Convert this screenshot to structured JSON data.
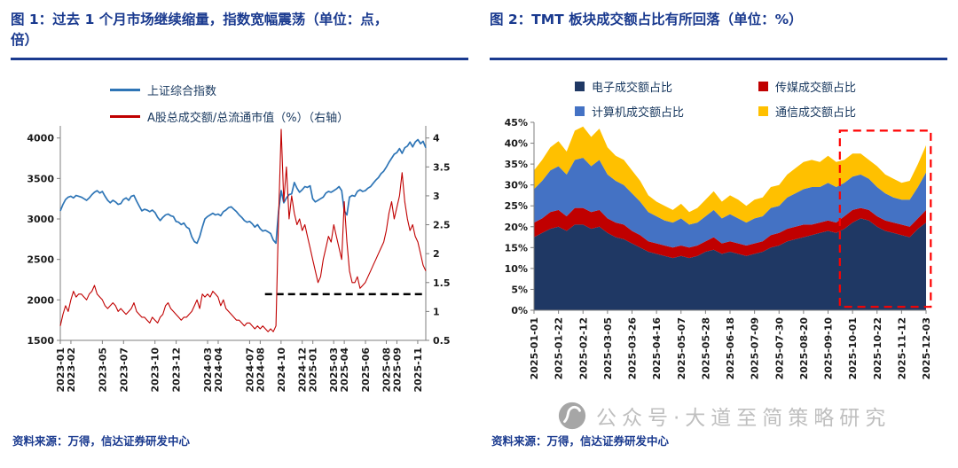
{
  "page": {
    "background": "#FFFFFF",
    "accent_color": "#1A3A8F"
  },
  "panels": {
    "left": {
      "title": "图 1：过去 1 个月市场继续缩量，指数宽幅震荡（单位：点，倍）",
      "source": "资料来源：万得，信达证券研发中心"
    },
    "right": {
      "title": "图 2：TMT 板块成交额占比有所回落（单位：%）",
      "source": "资料来源：万得，信达证券研发中心"
    }
  },
  "watermark": {
    "text": "公众号·大道至简策略研究",
    "color": "#BFBFBF",
    "logo_color": "#A6A6A6"
  },
  "chart_data": [
    {
      "type": "line",
      "title": "过去 1 个月市场继续缩量，指数宽幅震荡",
      "units": "点，倍",
      "left_axis": {
        "min": 1500,
        "max": 4150,
        "ticks": [
          1500,
          2000,
          2500,
          3000,
          3500,
          4000
        ]
      },
      "right_axis": {
        "min": 0.5,
        "max": 4.21,
        "ticks": [
          0.5,
          1,
          1.5,
          2,
          2.5,
          3,
          3.5,
          4
        ]
      },
      "x_ticks": [
        {
          "label": "2023-01",
          "pos": 0.0
        },
        {
          "label": "2023-02",
          "pos": 0.029
        },
        {
          "label": "2023-05",
          "pos": 0.115
        },
        {
          "label": "2023-07",
          "pos": 0.173
        },
        {
          "label": "2023-10",
          "pos": 0.259
        },
        {
          "label": "2023-12",
          "pos": 0.317
        },
        {
          "label": "2024-03",
          "pos": 0.403
        },
        {
          "label": "2024-04",
          "pos": 0.432
        },
        {
          "label": "2024-07",
          "pos": 0.518
        },
        {
          "label": "2024-08",
          "pos": 0.547
        },
        {
          "label": "2024-10",
          "pos": 0.604
        },
        {
          "label": "2024-12",
          "pos": 0.662
        },
        {
          "label": "2025-01",
          "pos": 0.691
        },
        {
          "label": "2025-03",
          "pos": 0.748
        },
        {
          "label": "2025-04",
          "pos": 0.777
        },
        {
          "label": "2025-06",
          "pos": 0.835
        },
        {
          "label": "2025-08",
          "pos": 0.892
        },
        {
          "label": "2025-09",
          "pos": 0.921
        },
        {
          "label": "2025-11",
          "pos": 0.978
        }
      ],
      "ref_line": {
        "axis": "right",
        "value": 1.3,
        "from": 0.56,
        "to": 1.0,
        "color": "#000000",
        "style": "dashed"
      },
      "series": [
        {
          "name": "上证综合指数",
          "axis": "left",
          "color": "#2E75B6",
          "values": [
            3100,
            3180,
            3240,
            3270,
            3280,
            3260,
            3290,
            3280,
            3270,
            3250,
            3230,
            3260,
            3300,
            3330,
            3350,
            3320,
            3340,
            3280,
            3230,
            3200,
            3230,
            3210,
            3180,
            3190,
            3240,
            3260,
            3230,
            3280,
            3290,
            3220,
            3160,
            3100,
            3120,
            3110,
            3090,
            3110,
            3080,
            3020,
            2980,
            3020,
            3050,
            3060,
            3040,
            3030,
            2970,
            2960,
            2930,
            2950,
            2900,
            2880,
            2780,
            2720,
            2700,
            2780,
            2900,
            3000,
            3030,
            3050,
            3070,
            3050,
            3060,
            3040,
            3090,
            3110,
            3140,
            3150,
            3120,
            3090,
            3050,
            3020,
            2980,
            2960,
            2970,
            2940,
            2900,
            2930,
            2880,
            2850,
            2860,
            2840,
            2820,
            2740,
            2700,
            3090,
            3350,
            3200,
            3260,
            3300,
            3310,
            3450,
            3380,
            3330,
            3360,
            3400,
            3390,
            3410,
            3250,
            3210,
            3230,
            3250,
            3270,
            3320,
            3340,
            3330,
            3350,
            3370,
            3400,
            3350,
            3100,
            3050,
            3270,
            3290,
            3280,
            3340,
            3360,
            3340,
            3350,
            3380,
            3400,
            3440,
            3480,
            3510,
            3560,
            3590,
            3640,
            3700,
            3750,
            3800,
            3820,
            3870,
            3810,
            3880,
            3900,
            3950,
            3890,
            3950,
            3980,
            3930,
            3960,
            3880
          ]
        },
        {
          "name": "A股总成交额/总流通市值（%）（右轴）",
          "axis": "right",
          "color": "#C00000",
          "values": [
            0.75,
            0.95,
            1.1,
            1.0,
            1.2,
            1.35,
            1.25,
            1.3,
            1.3,
            1.25,
            1.2,
            1.3,
            1.35,
            1.45,
            1.3,
            1.25,
            1.2,
            1.1,
            1.05,
            1.1,
            1.15,
            1.1,
            1.0,
            1.05,
            1.0,
            0.95,
            1.0,
            1.05,
            1.15,
            1.0,
            0.95,
            0.9,
            0.9,
            0.85,
            0.8,
            0.9,
            0.85,
            0.8,
            0.9,
            0.95,
            1.1,
            1.15,
            1.05,
            1.0,
            0.95,
            0.9,
            0.85,
            0.9,
            0.9,
            0.95,
            1.0,
            1.1,
            1.2,
            1.05,
            1.3,
            1.25,
            1.3,
            1.25,
            1.35,
            1.3,
            1.25,
            1.1,
            1.2,
            1.05,
            1.0,
            0.95,
            0.9,
            0.85,
            0.85,
            0.8,
            0.75,
            0.8,
            0.8,
            0.75,
            0.7,
            0.75,
            0.7,
            0.75,
            0.7,
            0.65,
            0.7,
            0.65,
            0.75,
            2.6,
            4.15,
            2.9,
            3.5,
            2.6,
            3.0,
            2.7,
            2.5,
            2.6,
            2.4,
            2.5,
            2.3,
            2.1,
            1.9,
            1.7,
            1.5,
            1.6,
            1.9,
            2.1,
            2.3,
            2.2,
            2.5,
            2.3,
            2.1,
            1.9,
            2.9,
            2.2,
            1.7,
            1.5,
            1.5,
            1.6,
            1.4,
            1.45,
            1.5,
            1.6,
            1.7,
            1.8,
            1.9,
            2.0,
            2.1,
            2.2,
            2.4,
            2.7,
            2.9,
            2.6,
            2.8,
            3.0,
            3.4,
            2.9,
            2.6,
            2.4,
            2.5,
            2.3,
            2.2,
            2.0,
            1.8,
            1.7
          ]
        }
      ]
    },
    {
      "type": "stacked_area",
      "title": "TMT 板块成交额占比有所回落",
      "units": "%",
      "ylim": [
        0,
        45
      ],
      "y_ticks": [
        0,
        5,
        10,
        15,
        20,
        25,
        30,
        35,
        40,
        45
      ],
      "x_ticks": [
        {
          "label": "2025-01-01",
          "index": 0
        },
        {
          "label": "2025-01-22",
          "index": 3
        },
        {
          "label": "2025-02-12",
          "index": 6
        },
        {
          "label": "2025-03-05",
          "index": 9
        },
        {
          "label": "2025-03-26",
          "index": 12
        },
        {
          "label": "2025-04-16",
          "index": 15
        },
        {
          "label": "2025-05-07",
          "index": 18
        },
        {
          "label": "2025-05-28",
          "index": 21
        },
        {
          "label": "2025-06-18",
          "index": 24
        },
        {
          "label": "2025-07-09",
          "index": 27
        },
        {
          "label": "2025-07-30",
          "index": 30
        },
        {
          "label": "2025-08-20",
          "index": 33
        },
        {
          "label": "2025-09-10",
          "index": 36
        },
        {
          "label": "2025-10-01",
          "index": 39
        },
        {
          "label": "2025-10-22",
          "index": 42
        },
        {
          "label": "2025-11-12",
          "index": 45
        },
        {
          "label": "2025-12-03",
          "index": 48
        }
      ],
      "highlight_box": {
        "from": 0.78,
        "to": 1.012,
        "top": 43,
        "bottom": 0.8,
        "color": "#FF0000",
        "style": "dashed"
      },
      "series": [
        {
          "name": "电子成交额占比",
          "color": "#1F3864",
          "values": [
            17.5,
            18.5,
            19.5,
            20,
            19,
            20.5,
            20.5,
            19.5,
            20,
            18.5,
            17.5,
            17,
            16,
            15,
            14,
            13.5,
            13,
            12.5,
            13,
            12.5,
            13,
            14,
            14.5,
            13.5,
            14,
            13.5,
            13,
            13.5,
            14,
            15,
            15.5,
            16.5,
            17,
            17.5,
            18,
            18.5,
            19,
            18.5,
            19.5,
            21,
            22,
            21.5,
            20,
            19,
            18.5,
            18,
            17.5,
            19.5,
            21
          ]
        },
        {
          "name": "传媒成交额占比",
          "color": "#C00000",
          "values": [
            3.5,
            3.5,
            4,
            4,
            3.5,
            4,
            4,
            4,
            4,
            3.5,
            3.5,
            3.5,
            3,
            3,
            2.5,
            2.5,
            2.5,
            2.5,
            2.5,
            2.5,
            2.5,
            2.5,
            3,
            2.5,
            2.5,
            2.5,
            2.5,
            2.5,
            2.5,
            3,
            3,
            3,
            3,
            3,
            2.5,
            2.5,
            2.5,
            2.5,
            3,
            3,
            2.5,
            2.5,
            2.5,
            2.5,
            2.5,
            2.5,
            2.5,
            2.5,
            3
          ]
        },
        {
          "name": "计算机成交额占比",
          "color": "#4472C4",
          "values": [
            8,
            9,
            10,
            10.5,
            10,
            11.5,
            12,
            11,
            12,
            10.5,
            10,
            9.5,
            9,
            8,
            7,
            6.5,
            6,
            6,
            6.5,
            5.5,
            5.5,
            6,
            6.5,
            6,
            6.5,
            6,
            5.5,
            6,
            6,
            6.5,
            6.5,
            7.5,
            8,
            8.5,
            9,
            8.5,
            9,
            8.5,
            8,
            8,
            8,
            7.5,
            7,
            6.5,
            6,
            6,
            6.5,
            7.5,
            9
          ]
        },
        {
          "name": "通信成交额占比",
          "color": "#FFC000",
          "values": [
            4.5,
            5,
            5.5,
            6,
            5.5,
            7,
            7.5,
            7,
            7.5,
            6.5,
            6,
            6,
            5.5,
            5,
            4,
            3.5,
            3.5,
            3,
            3.5,
            3,
            3.5,
            4,
            4.5,
            4,
            4.5,
            4.5,
            4,
            4.5,
            4.5,
            5,
            5,
            5.5,
            6,
            6.5,
            6.5,
            6,
            6.5,
            6,
            5.5,
            5.5,
            5,
            4.5,
            5,
            4.5,
            4.5,
            4,
            4.5,
            5.5,
            6.5
          ]
        }
      ]
    }
  ]
}
